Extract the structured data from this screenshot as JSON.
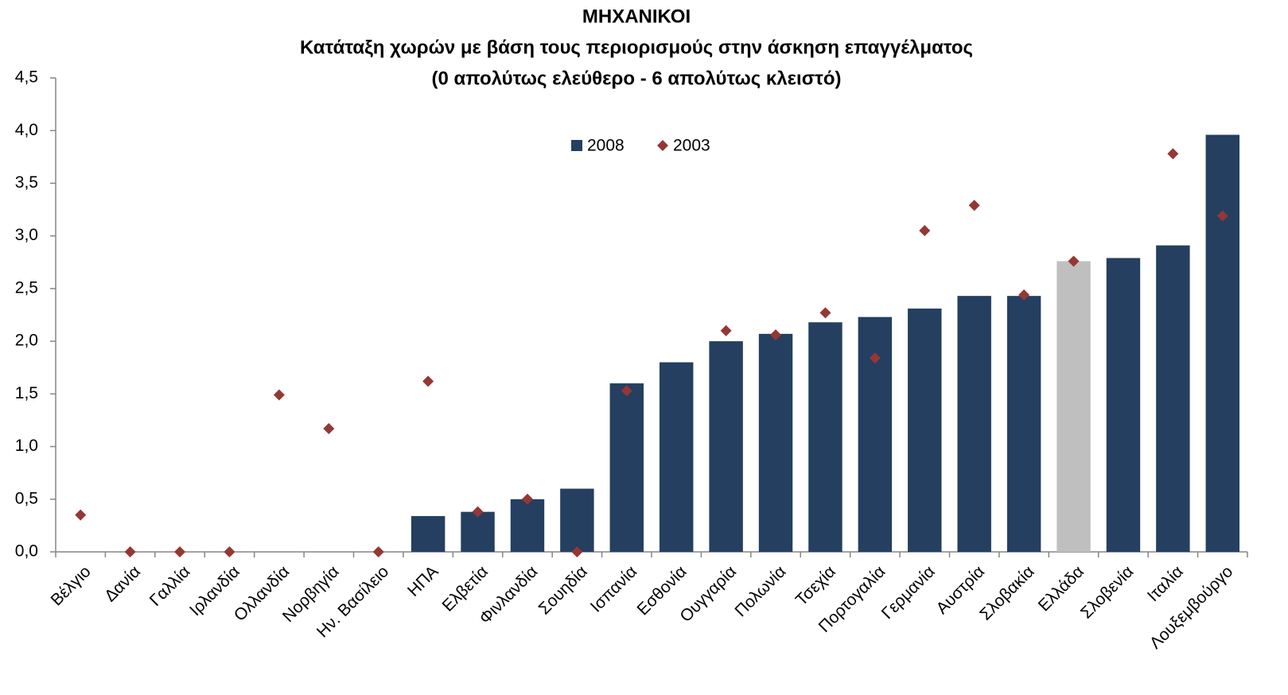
{
  "chart_data": {
    "type": "bar",
    "title": [
      "ΜΗΧΑΝΙΚΟΙ",
      "Κατάταξη χωρών με βάση τους περιορισμούς στην άσκηση επαγγέλματος",
      "(0 απολύτως ελεύθερο - 6 απολύτως κλειστό)"
    ],
    "categories": [
      "Βέλγιο",
      "Δανία",
      "Γαλλία",
      "Ιρλανδία",
      "Ολλανδία",
      "Νορβηγία",
      "Ην. Βασίλειο",
      "ΗΠΑ",
      "Ελβετία",
      "Φινλανδία",
      "Σουηδία",
      "Ισπανία",
      "Εσθονία",
      "Ουγγαρία",
      "Πολωνία",
      "Τσεχία",
      "Πορτογαλία",
      "Γερμανία",
      "Αυστρία",
      "Σλοβακία",
      "Ελλάδα",
      "Σλοβενία",
      "Ιταλία",
      "Λουξεμβούργο"
    ],
    "series": [
      {
        "name": "2008",
        "type": "bar",
        "color": "#243f60",
        "colors": [
          "#243f60",
          "#243f60",
          "#243f60",
          "#243f60",
          "#243f60",
          "#243f60",
          "#243f60",
          "#243f60",
          "#243f60",
          "#243f60",
          "#243f60",
          "#243f60",
          "#243f60",
          "#243f60",
          "#243f60",
          "#243f60",
          "#243f60",
          "#243f60",
          "#243f60",
          "#243f60",
          "#bfbfbf",
          "#243f60",
          "#243f60",
          "#243f60"
        ],
        "values": [
          0,
          0,
          0,
          0,
          0,
          0,
          0,
          0.34,
          0.38,
          0.5,
          0.6,
          1.6,
          1.8,
          2.0,
          2.07,
          2.18,
          2.23,
          2.31,
          2.43,
          2.43,
          2.76,
          2.79,
          2.91,
          3.96
        ]
      },
      {
        "name": "2003",
        "type": "scatter",
        "color": "#953735",
        "values": [
          0.35,
          0,
          0,
          0,
          1.49,
          1.17,
          0,
          1.62,
          0.38,
          0.5,
          0,
          1.53,
          null,
          2.1,
          2.06,
          2.27,
          1.84,
          3.05,
          3.29,
          2.44,
          2.76,
          null,
          3.78,
          3.19
        ]
      }
    ],
    "ylim": [
      0,
      4.5
    ],
    "yticks": [
      {
        "value": 0,
        "label": "0,0"
      },
      {
        "value": 0.5,
        "label": "0,5"
      },
      {
        "value": 1,
        "label": "1,0"
      },
      {
        "value": 1.5,
        "label": "1,5"
      },
      {
        "value": 2,
        "label": "2,0"
      },
      {
        "value": 2.5,
        "label": "2,5"
      },
      {
        "value": 3,
        "label": "3,0"
      },
      {
        "value": 3.5,
        "label": "3,5"
      },
      {
        "value": 4,
        "label": "4,0"
      },
      {
        "value": 4.5,
        "label": "4,5"
      }
    ],
    "legend": "top"
  }
}
